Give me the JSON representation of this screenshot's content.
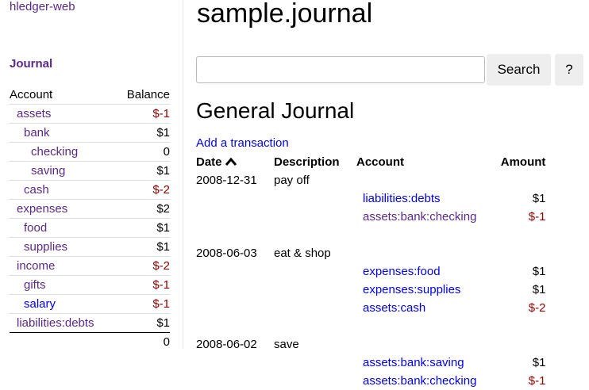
{
  "sidebar": {
    "brand": "hledger-web",
    "journal_link": "Journal",
    "header": {
      "account": "Account",
      "balance": "Balance"
    },
    "accounts": [
      {
        "name": "assets",
        "indent": 0,
        "balance": "$-1",
        "neg": true,
        "visited": true
      },
      {
        "name": "bank",
        "indent": 1,
        "balance": "$1",
        "neg": false,
        "visited": true
      },
      {
        "name": "checking",
        "indent": 2,
        "balance": "0",
        "neg": false,
        "visited": true
      },
      {
        "name": "saving",
        "indent": 2,
        "balance": "$1",
        "neg": false,
        "visited": true
      },
      {
        "name": "cash",
        "indent": 1,
        "balance": "$-2",
        "neg": true,
        "visited": true
      },
      {
        "name": "expenses",
        "indent": 0,
        "balance": "$2",
        "neg": false,
        "visited": true
      },
      {
        "name": "food",
        "indent": 1,
        "balance": "$1",
        "neg": false,
        "visited": true
      },
      {
        "name": "supplies",
        "indent": 1,
        "balance": "$1",
        "neg": false,
        "visited": true
      },
      {
        "name": "income",
        "indent": 0,
        "balance": "$-2",
        "neg": true,
        "visited": true
      },
      {
        "name": "gifts",
        "indent": 1,
        "balance": "$-1",
        "neg": true,
        "visited": true
      },
      {
        "name": "salary",
        "indent": 1,
        "balance": "$-1",
        "neg": true,
        "visited": false
      },
      {
        "name": "liabilities:debts",
        "indent": 0,
        "balance": "$1",
        "neg": false,
        "visited": true
      }
    ],
    "total": "0"
  },
  "header": {
    "title": "sample.journal",
    "search_placeholder": "",
    "search_value": "",
    "search_label": "Search",
    "help_label": "?"
  },
  "main": {
    "heading": "General Journal",
    "add_link": "Add a transaction",
    "sort_icon": "chevron-up-icon",
    "columns": {
      "date": "Date",
      "description": "Description",
      "account": "Account",
      "amount": "Amount"
    },
    "transactions": [
      {
        "date": "2008-12-31",
        "description": "pay off",
        "postings": [
          {
            "account": "liabilities:debts",
            "amount": "$1",
            "neg": false,
            "visited": false
          },
          {
            "account": "assets:bank:checking",
            "amount": "$-1",
            "neg": true,
            "visited": true
          }
        ]
      },
      {
        "date": "2008-06-03",
        "description": "eat & shop",
        "postings": [
          {
            "account": "expenses:food",
            "amount": "$1",
            "neg": false,
            "visited": false
          },
          {
            "account": "expenses:supplies",
            "amount": "$1",
            "neg": false,
            "visited": false
          },
          {
            "account": "assets:cash",
            "amount": "$-2",
            "neg": true,
            "visited": false
          }
        ]
      },
      {
        "date": "2008-06-02",
        "description": "save",
        "postings": [
          {
            "account": "assets:bank:saving",
            "amount": "$1",
            "neg": false,
            "visited": false
          },
          {
            "account": "assets:bank:checking",
            "amount": "$-1",
            "neg": true,
            "visited": false
          }
        ]
      }
    ]
  },
  "colors": {
    "visited_link": "#5b2a86",
    "link": "#0000ee",
    "negative": "#8b0000"
  }
}
